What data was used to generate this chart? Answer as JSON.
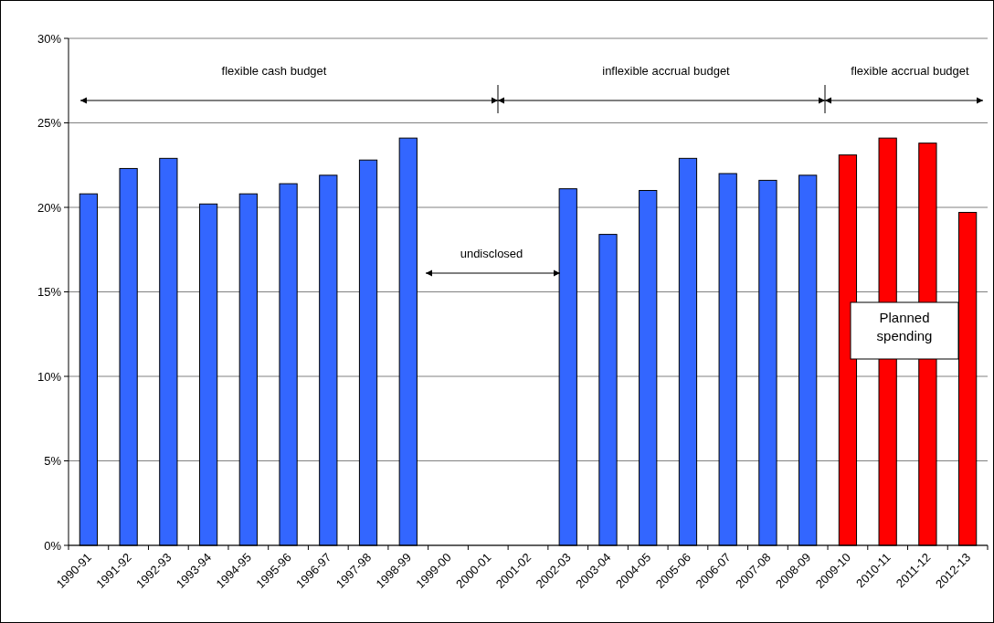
{
  "chart_data": {
    "type": "bar",
    "categories": [
      "1990-91",
      "1991-92",
      "1992-93",
      "1993-94",
      "1994-95",
      "1995-96",
      "1996-97",
      "1997-98",
      "1998-99",
      "1999-00",
      "2000-01",
      "2001-02",
      "2002-03",
      "2003-04",
      "2004-05",
      "2005-06",
      "2006-07",
      "2007-08",
      "2008-09",
      "2009-10",
      "2010-11",
      "2011-12",
      "2012-13"
    ],
    "values": [
      20.8,
      22.3,
      22.9,
      20.2,
      20.8,
      21.4,
      21.9,
      22.8,
      24.1,
      null,
      null,
      null,
      21.1,
      18.4,
      21.0,
      22.9,
      22.0,
      21.6,
      21.9,
      23.1,
      24.1,
      23.8,
      19.7
    ],
    "colors": [
      "#3366ff",
      "#3366ff",
      "#3366ff",
      "#3366ff",
      "#3366ff",
      "#3366ff",
      "#3366ff",
      "#3366ff",
      "#3366ff",
      null,
      null,
      null,
      "#3366ff",
      "#3366ff",
      "#3366ff",
      "#3366ff",
      "#3366ff",
      "#3366ff",
      "#3366ff",
      "#ff0000",
      "#ff0000",
      "#ff0000",
      "#ff0000"
    ],
    "ylim": [
      0,
      30
    ],
    "yticks": [
      {
        "value": 0,
        "label": "0%"
      },
      {
        "value": 5,
        "label": "5%"
      },
      {
        "value": 10,
        "label": "10%"
      },
      {
        "value": 15,
        "label": "15%"
      },
      {
        "value": 20,
        "label": "20%"
      },
      {
        "value": 25,
        "label": "25%"
      },
      {
        "value": 30,
        "label": "30%"
      }
    ],
    "grid": "y",
    "annotations": [
      "flexible cash budget",
      "inflexible accrual budget",
      "flexible accrual budget",
      "undisclosed",
      "Planned spending"
    ]
  }
}
